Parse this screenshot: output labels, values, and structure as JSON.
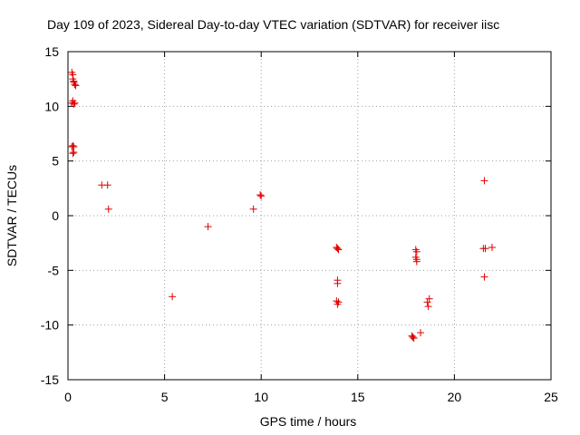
{
  "chart_data": {
    "type": "scatter",
    "title": "Day 109 of 2023, Sidereal Day-to-day VTEC variation (SDTVAR) for receiver iisc",
    "xlabel": "GPS time / hours",
    "ylabel": "SDTVAR / TECUs",
    "xlim": [
      0,
      25
    ],
    "ylim": [
      -15,
      15
    ],
    "xticks": [
      0,
      5,
      10,
      15,
      20,
      25
    ],
    "yticks": [
      -15,
      -10,
      -5,
      0,
      5,
      10,
      15
    ],
    "grid": true,
    "marker": "+",
    "color": "#e00000",
    "series": [
      {
        "name": "SDTVAR",
        "points": [
          [
            0.2,
            13.1
          ],
          [
            0.25,
            12.9
          ],
          [
            0.25,
            12.5
          ],
          [
            0.3,
            12.3
          ],
          [
            0.3,
            12.2
          ],
          [
            0.35,
            12.0
          ],
          [
            0.4,
            11.9
          ],
          [
            0.2,
            10.3
          ],
          [
            0.25,
            10.5
          ],
          [
            0.3,
            10.2
          ],
          [
            0.35,
            10.3
          ],
          [
            0.2,
            6.3
          ],
          [
            0.25,
            6.4
          ],
          [
            0.3,
            6.3
          ],
          [
            0.25,
            5.7
          ],
          [
            0.3,
            5.8
          ],
          [
            1.75,
            2.8
          ],
          [
            2.05,
            2.8
          ],
          [
            2.1,
            0.6
          ],
          [
            5.4,
            -7.4
          ],
          [
            7.25,
            -1.0
          ],
          [
            9.6,
            0.6
          ],
          [
            10.0,
            1.8
          ],
          [
            9.95,
            1.9
          ],
          [
            13.9,
            -2.9
          ],
          [
            14.0,
            -3.1
          ],
          [
            13.95,
            -3.0
          ],
          [
            13.95,
            -5.9
          ],
          [
            13.95,
            -6.2
          ],
          [
            13.9,
            -7.8
          ],
          [
            14.0,
            -7.9
          ],
          [
            13.95,
            -8.1
          ],
          [
            18.0,
            -3.1
          ],
          [
            18.05,
            -3.3
          ],
          [
            18.0,
            -3.8
          ],
          [
            18.05,
            -4.0
          ],
          [
            18.05,
            -4.2
          ],
          [
            17.8,
            -11.0
          ],
          [
            17.9,
            -11.2
          ],
          [
            17.85,
            -11.1
          ],
          [
            18.25,
            -10.7
          ],
          [
            18.7,
            -7.6
          ],
          [
            18.6,
            -7.9
          ],
          [
            18.65,
            -8.3
          ],
          [
            21.55,
            3.2
          ],
          [
            21.5,
            -3.0
          ],
          [
            21.6,
            -3.0
          ],
          [
            21.95,
            -2.9
          ],
          [
            21.55,
            -5.6
          ]
        ]
      }
    ]
  }
}
